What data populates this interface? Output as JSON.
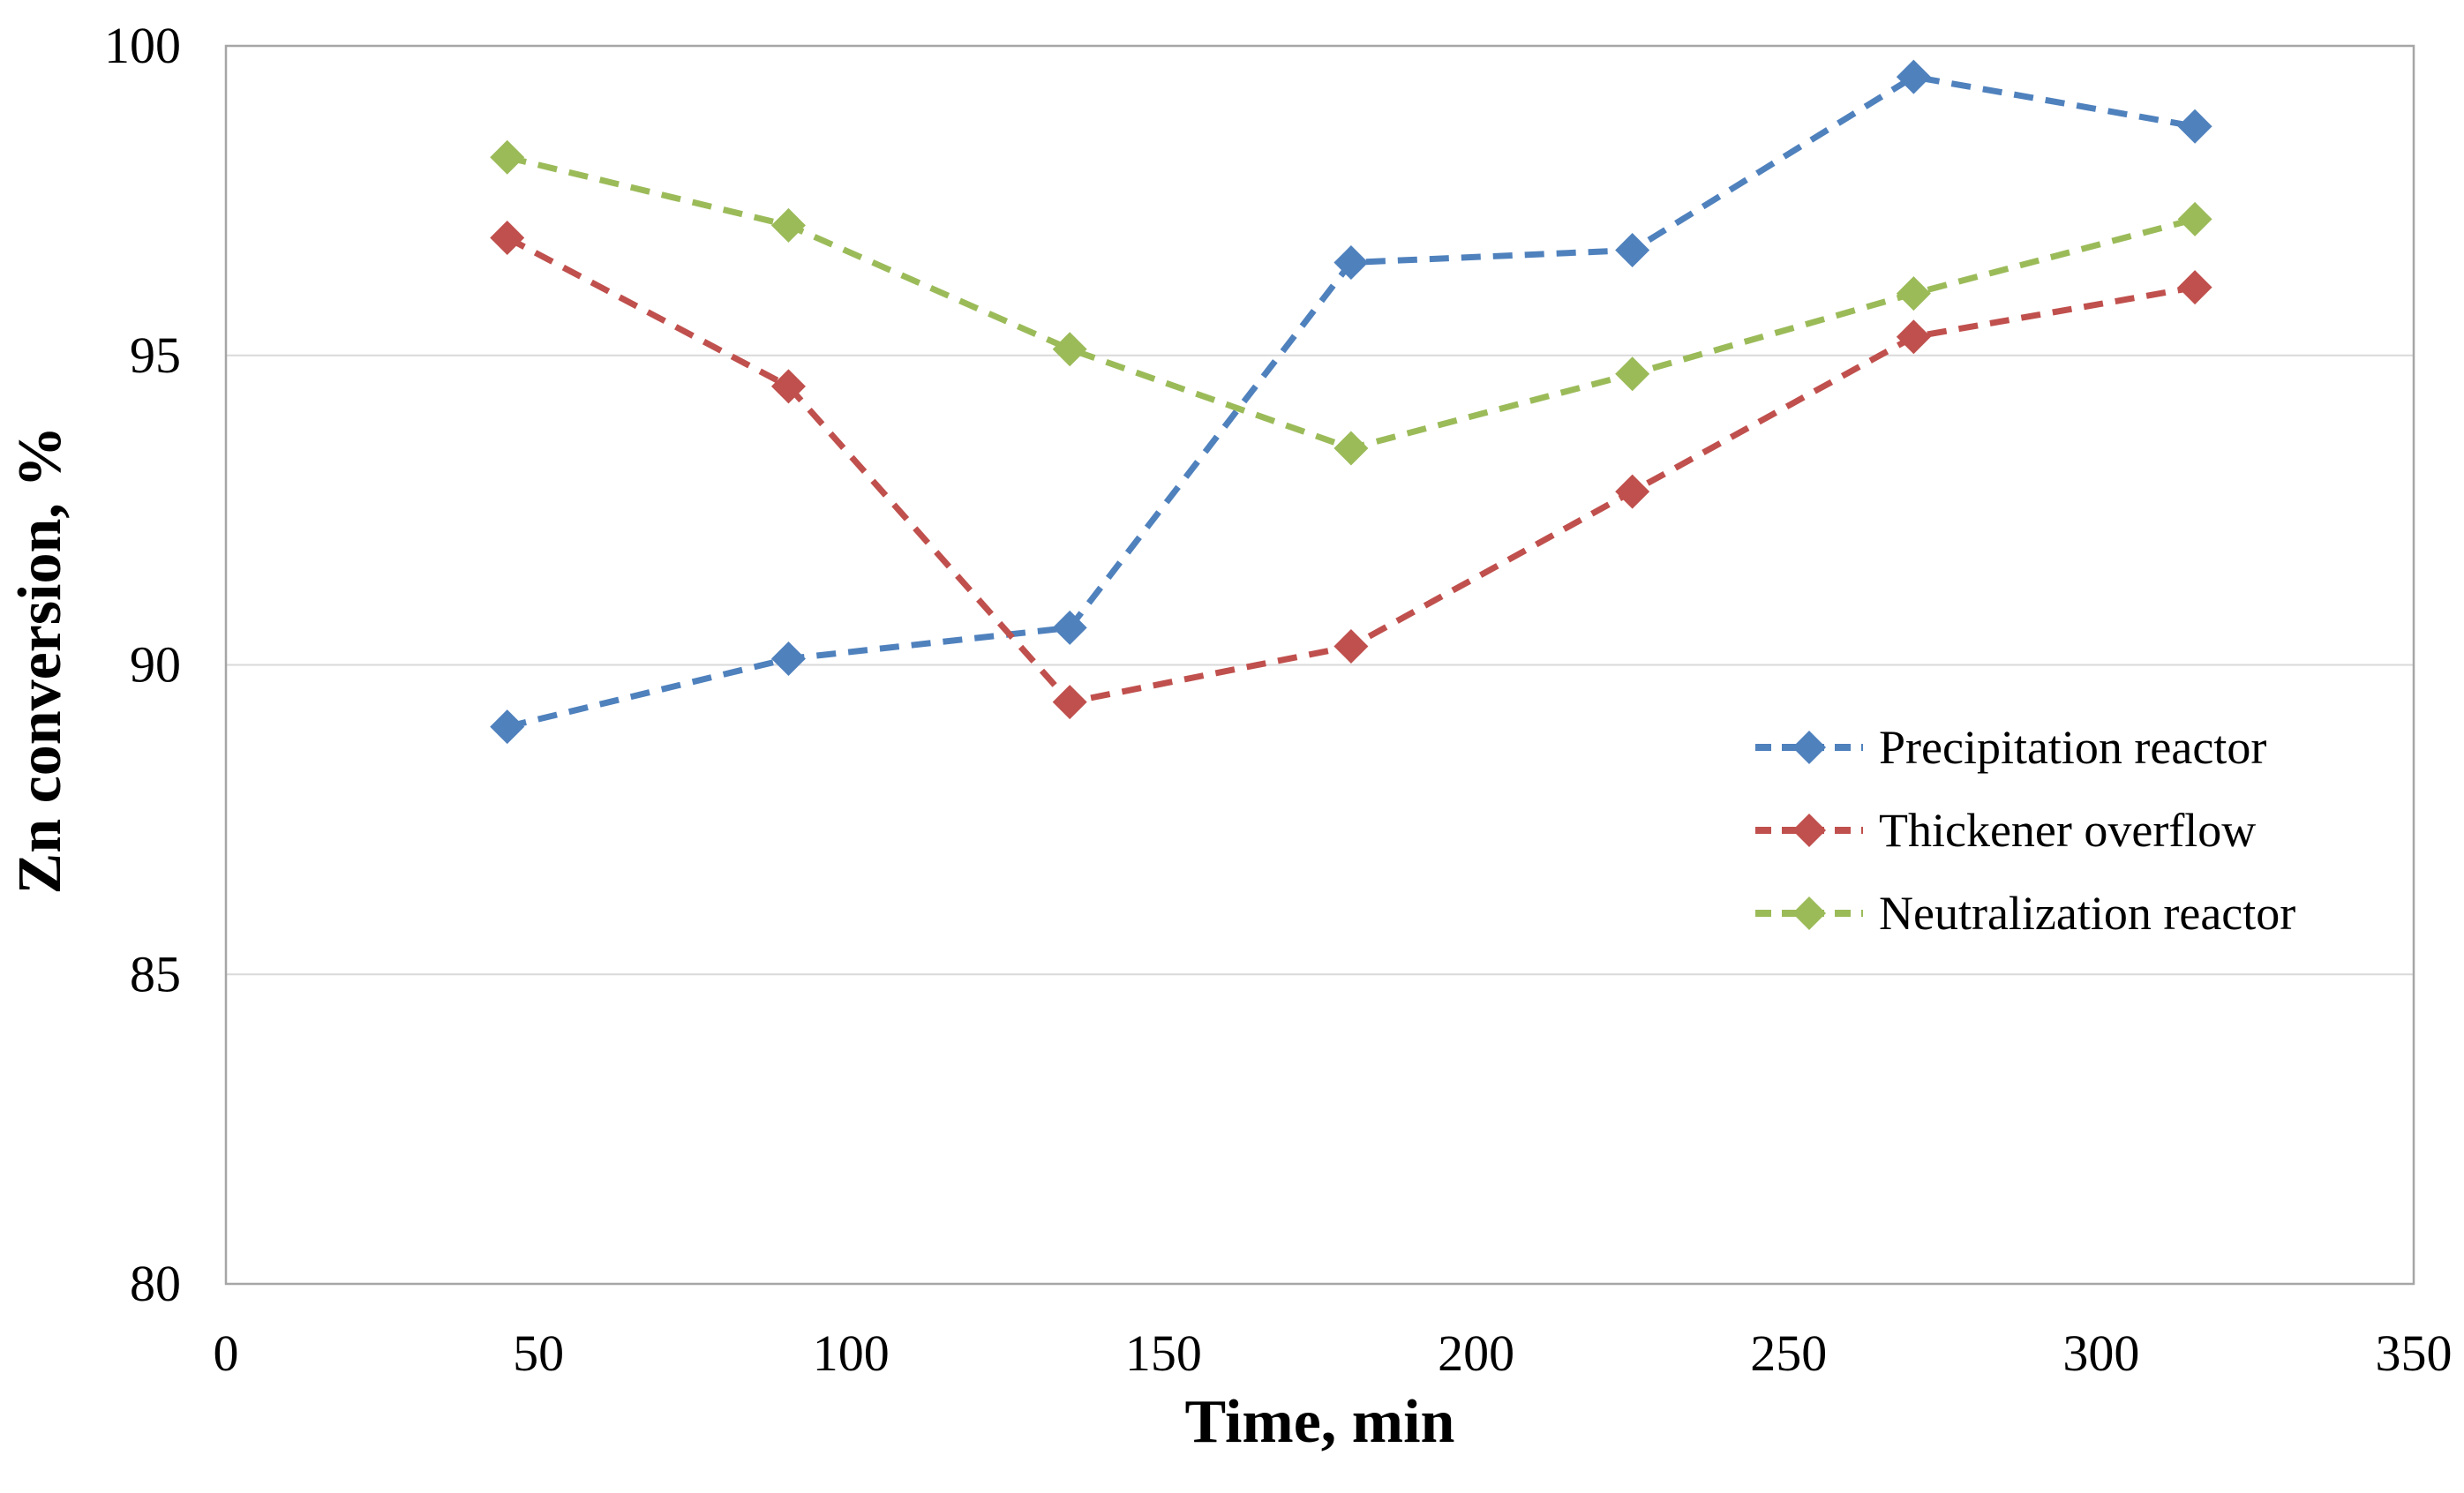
{
  "page": {
    "background": "#ffffff",
    "text_color": "#000000"
  },
  "chart_data": {
    "type": "line",
    "title": "",
    "xlabel": "Time, min",
    "ylabel": "Zn conversion, %",
    "xlim": [
      0,
      350
    ],
    "ylim": [
      80,
      100
    ],
    "x_ticks": [
      0,
      50,
      100,
      150,
      200,
      250,
      300,
      350
    ],
    "y_ticks": [
      80,
      85,
      90,
      95,
      100
    ],
    "grid": "horizontal",
    "legend_position": "inside-right",
    "line_style": "dashed",
    "marker": "diamond",
    "x": [
      45,
      90,
      135,
      180,
      225,
      270,
      315
    ],
    "series": [
      {
        "name": "Precipitation reactor",
        "color": "#4F81BD",
        "values": [
          89.0,
          90.1,
          90.6,
          96.5,
          96.7,
          99.5,
          98.7
        ]
      },
      {
        "name": "Thickener overflow",
        "color": "#C0504D",
        "values": [
          96.9,
          94.5,
          89.4,
          90.3,
          92.8,
          95.3,
          96.1
        ]
      },
      {
        "name": "Neutralization reactor",
        "color": "#9BBB59",
        "values": [
          98.2,
          97.1,
          95.1,
          93.5,
          94.7,
          96.0,
          97.2
        ]
      }
    ],
    "colors": {
      "gridline": "#D9D9D9",
      "plot_border": "#A6A6A6",
      "text": "#000000"
    }
  }
}
